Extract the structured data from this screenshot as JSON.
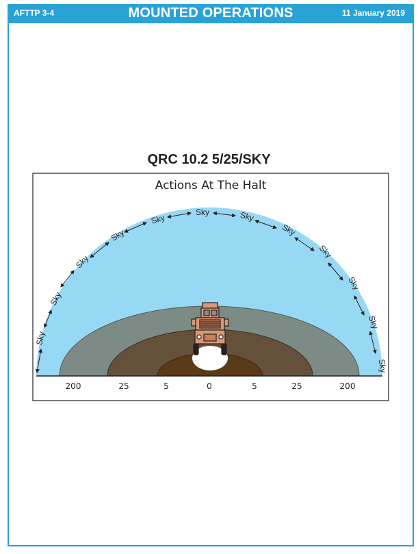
{
  "header": {
    "doc_id": "AFTTP 3-4",
    "title": "MOUNTED OPERATIONS",
    "date": "11 January 2019"
  },
  "section_title": "QRC 10.2 5/25/SKY",
  "diagram": {
    "title": "Actions At The Halt",
    "sky_label": "Sky",
    "scale_labels": [
      "200",
      "25",
      "5",
      "0",
      "5",
      "25",
      "200"
    ],
    "colors": {
      "sky_zone": "#97d9f4",
      "zone_200": "#7c8b86",
      "zone_25": "#65513b",
      "zone_5": "#5a3b17",
      "vehicle": "#d89877",
      "header": "#29a3d6"
    }
  }
}
